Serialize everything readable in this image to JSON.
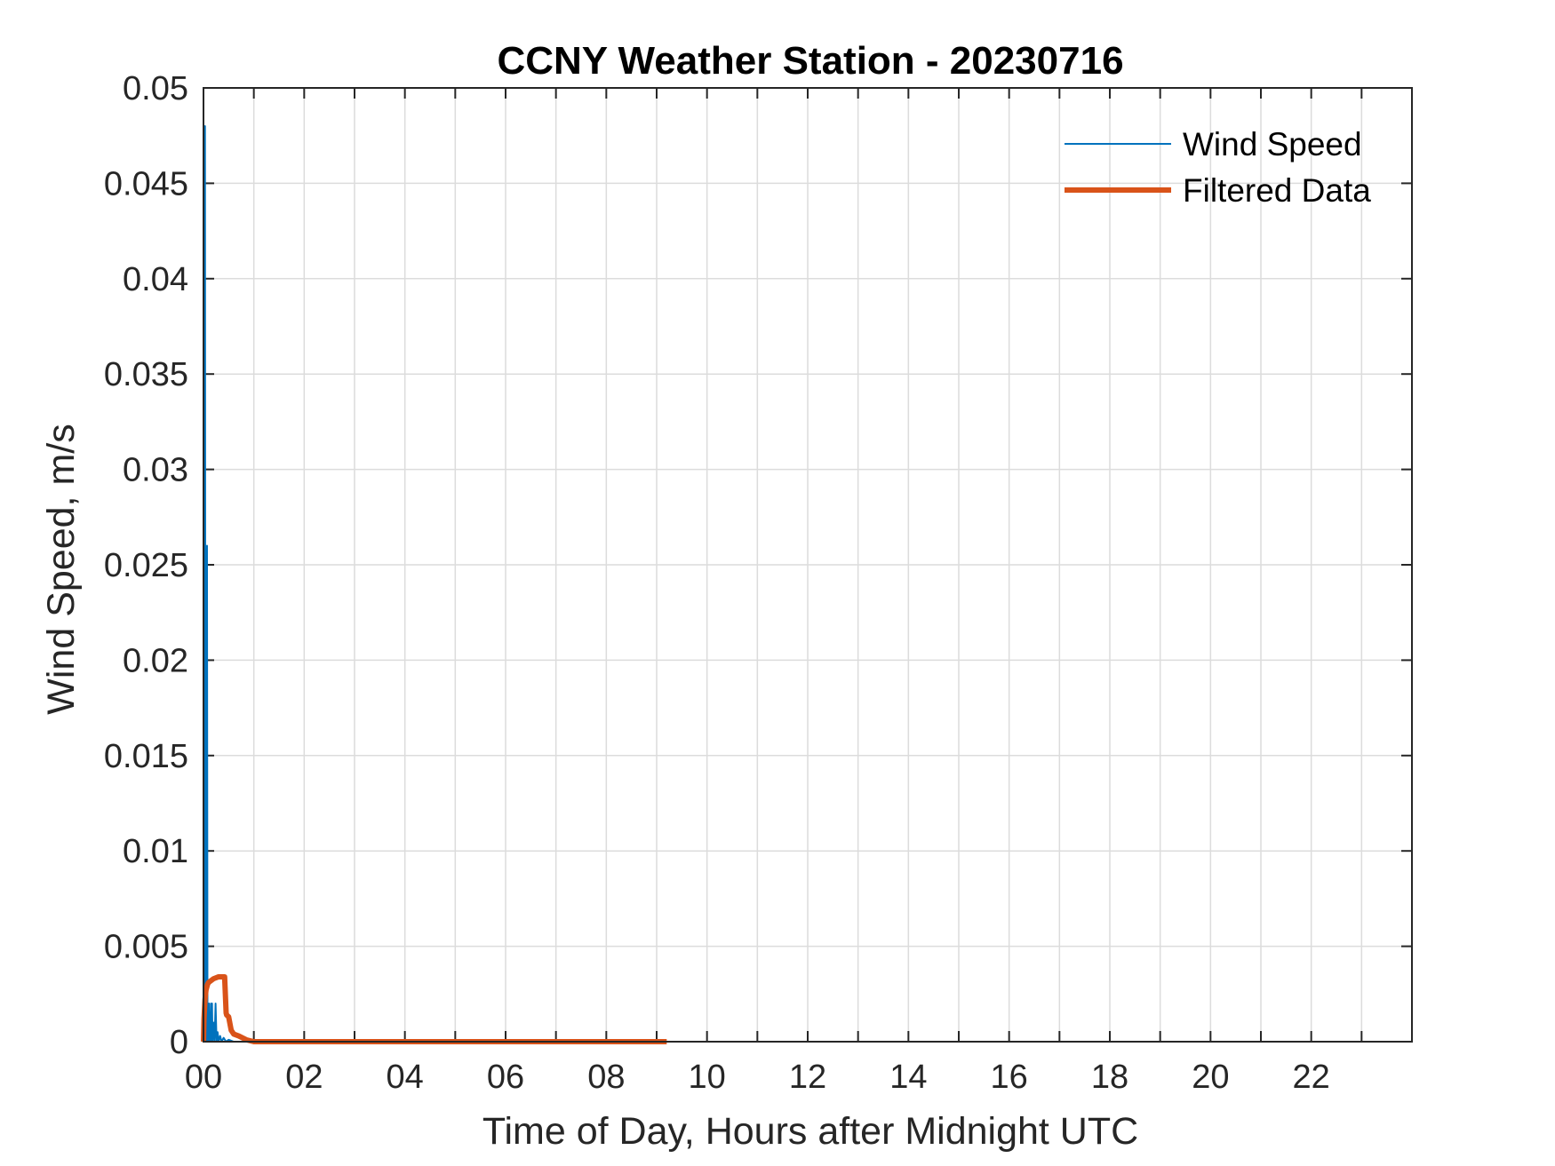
{
  "chart_data": {
    "type": "line",
    "title": "CCNY Weather Station - 20230716",
    "xlabel": "Time of Day, Hours after Midnight UTC",
    "ylabel": "Wind Speed, m/s",
    "xlim": [
      0,
      24
    ],
    "ylim": [
      0,
      0.05
    ],
    "xticks": [
      0,
      2,
      4,
      6,
      8,
      10,
      12,
      14,
      16,
      18,
      20,
      22
    ],
    "xtick_labels": [
      "00",
      "02",
      "04",
      "06",
      "08",
      "10",
      "12",
      "14",
      "16",
      "18",
      "20",
      "22"
    ],
    "yticks": [
      0,
      0.005,
      0.01,
      0.015,
      0.02,
      0.025,
      0.03,
      0.035,
      0.04,
      0.045,
      0.05
    ],
    "ytick_labels": [
      "0",
      "0.005",
      "0.01",
      "0.015",
      "0.02",
      "0.025",
      "0.03",
      "0.035",
      "0.04",
      "0.045",
      "0.05"
    ],
    "grid": true,
    "legend_position": "top-right",
    "series": [
      {
        "name": "Wind Speed",
        "color": "#0072BD",
        "x": [
          0,
          0.01,
          0.02,
          0.03,
          0.04,
          0.05,
          0.06,
          0.07,
          0.08,
          0.09,
          0.1,
          0.11,
          0.12,
          0.13,
          0.14,
          0.15,
          0.16,
          0.17,
          0.18,
          0.2,
          0.22,
          0.24,
          0.26,
          0.28,
          0.3,
          0.33,
          0.36,
          0.4,
          0.45,
          0.5,
          0.6,
          0.8,
          1.0
        ],
        "values": [
          0,
          0.0365,
          0,
          0.048,
          0,
          0.0125,
          0,
          0.026,
          0,
          0.001,
          0,
          0.002,
          0,
          0.0015,
          0,
          0.002,
          0,
          0.002,
          0,
          0.001,
          0,
          0.002,
          0,
          0.0005,
          0,
          0.0003,
          0,
          0.0002,
          0,
          0.0001,
          0,
          0,
          0
        ]
      },
      {
        "name": "Filtered Data",
        "color": "#D95319",
        "x": [
          0,
          0.01,
          0.03,
          0.05,
          0.08,
          0.1,
          0.15,
          0.2,
          0.3,
          0.38,
          0.42,
          0.45,
          0.46,
          0.5,
          0.55,
          0.6,
          0.7,
          0.85,
          1.0,
          2.0,
          4.0,
          6.0,
          8.0,
          9.2
        ],
        "values": [
          0,
          0.0012,
          0.0022,
          0.0027,
          0.003,
          0.0031,
          0.0032,
          0.0033,
          0.0034,
          0.0034,
          0.0034,
          0.0015,
          0.0014,
          0.0013,
          0.0006,
          0.0004,
          0.0003,
          0.0001,
          0,
          0,
          0,
          0,
          0,
          0
        ]
      }
    ]
  }
}
